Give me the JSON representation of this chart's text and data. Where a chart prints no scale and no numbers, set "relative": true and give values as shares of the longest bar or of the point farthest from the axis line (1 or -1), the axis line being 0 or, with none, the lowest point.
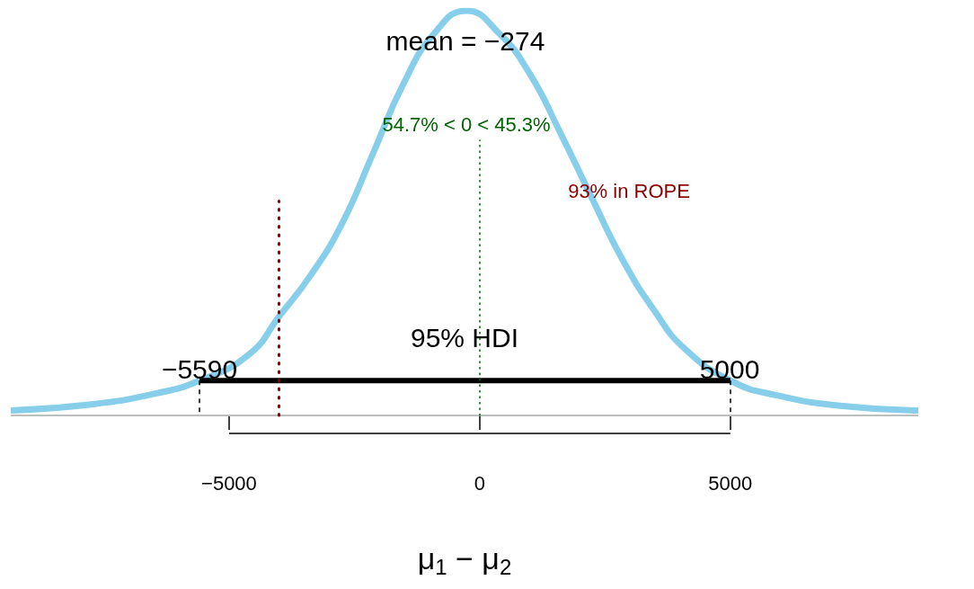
{
  "chart_data": {
    "type": "line",
    "xlabel": "μ$_{1}$ − μ$_{2}$",
    "relative": true,
    "xlim": [
      -9355,
      8750
    ],
    "xticks": [
      -5000,
      0,
      5000
    ],
    "grid": false,
    "marker": "none",
    "series": [
      {
        "color": "#87ceeb",
        "x": [
          -9355,
          -7710,
          -6470,
          -5590,
          -4600,
          -3995,
          -3370,
          -2760,
          -2130,
          -1520,
          -900,
          -270,
          380,
          1000,
          1610,
          2240,
          2850,
          3480,
          4090,
          5020,
          5950,
          7190,
          8750
        ],
        "values": [
          0.012,
          0.028,
          0.054,
          0.086,
          0.151,
          0.246,
          0.347,
          0.471,
          0.647,
          0.82,
          0.945,
          1,
          0.945,
          0.844,
          0.698,
          0.537,
          0.385,
          0.26,
          0.165,
          0.085,
          0.049,
          0.024,
          0.012
        ]
      },
      {
        "color": "#000000",
        "x": [
          -5590,
          5000
        ],
        "values": [
          0.086,
          0.086
        ]
      }
    ],
    "ref_lines": [
      {
        "axis": "x",
        "value": 0,
        "color": "#006400",
        "line_style": "dotted"
      },
      {
        "axis": "x",
        "value": -4000,
        "color": "#8b0000",
        "line_style": "dotted"
      }
    ],
    "annotations": [
      "mean = −274",
      "54.7% < 0 < 45.3%",
      "93% in ROPE",
      "95% HDI",
      "−5590",
      "5000"
    ]
  }
}
